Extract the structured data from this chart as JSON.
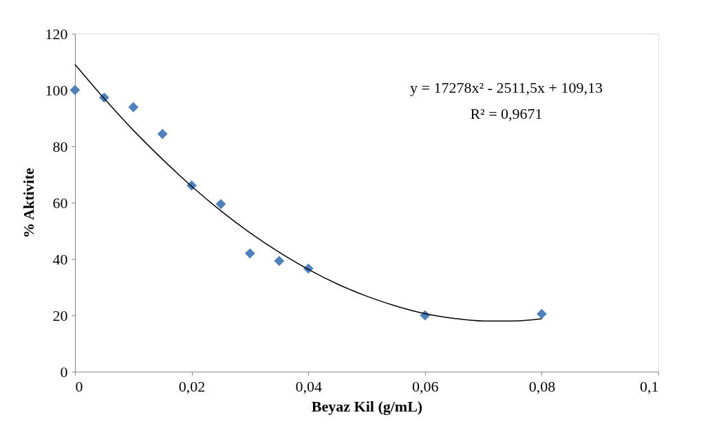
{
  "chart_data": {
    "type": "scatter",
    "xlabel": "Beyaz Kil (g/mL)",
    "ylabel": "% Aktivite",
    "x": [
      0,
      0.005,
      0.01,
      0.015,
      0.02,
      0.025,
      0.03,
      0.035,
      0.04,
      0.06,
      0.08
    ],
    "series": [
      {
        "color": "#4f81bd",
        "marker": "diamond",
        "values": [
          100,
          97.3,
          93.9,
          84.4,
          66.1,
          59.5,
          42,
          39.3,
          36.6,
          20,
          20.5
        ]
      },
      {
        "type": "line",
        "color": "#000000",
        "marker": "none",
        "x": [
          0,
          0.005,
          0.01,
          0.015,
          0.02,
          0.025,
          0.03,
          0.035,
          0.04,
          0.045,
          0.05,
          0.055,
          0.06,
          0.065,
          0.07,
          0.075,
          0.08
        ],
        "values": [
          109.1,
          97.0,
          85.7,
          75.4,
          65.8,
          57.1,
          49.3,
          42.4,
          36.3,
          31.1,
          26.8,
          23.3,
          20.6,
          18.9,
          18.0,
          18.0,
          18.8
        ]
      }
    ],
    "xlim": [
      0,
      0.1
    ],
    "xticks": [
      0,
      {
        "value": 0.02,
        "label": "0,02"
      },
      {
        "value": 0.04,
        "label": "0,04"
      },
      {
        "value": 0.06,
        "label": "0,06"
      },
      {
        "value": 0.08,
        "label": "0,08"
      },
      {
        "value": 0.1,
        "label": "0,1"
      }
    ],
    "ylim": [
      0,
      120
    ],
    "yticks": [
      0,
      20,
      40,
      60,
      80,
      100,
      120
    ],
    "grid": false,
    "annotations": [
      "y = 17278x² - 2511,5x + 109,13",
      "R² = 0,9671"
    ]
  }
}
